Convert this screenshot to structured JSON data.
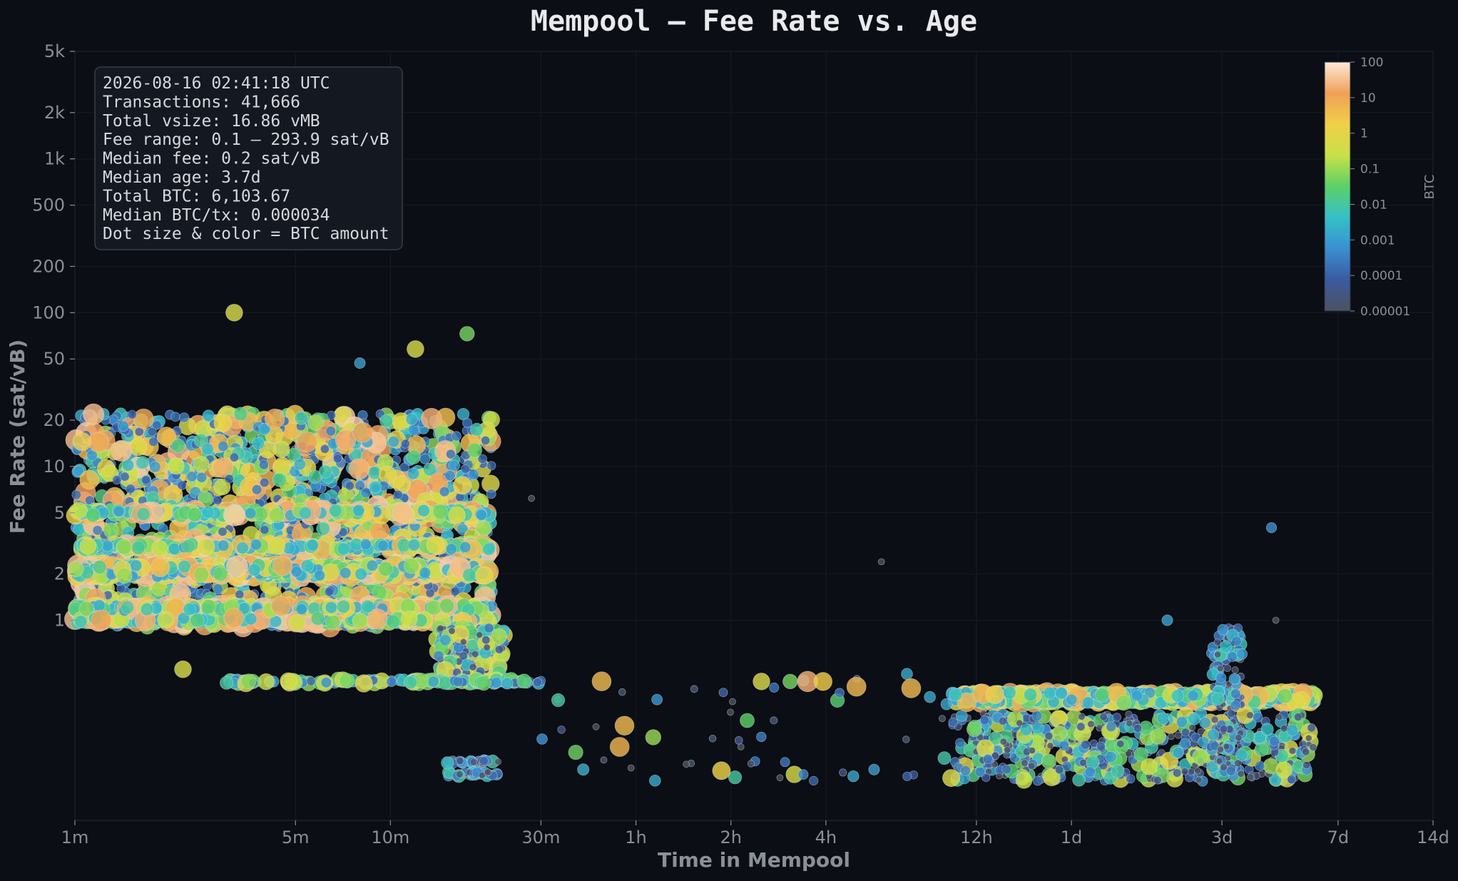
{
  "chart_data": {
    "type": "scatter",
    "title": "Mempool — Fee Rate vs. Age",
    "xlabel": "Time in Mempool",
    "ylabel": "Fee Rate (sat/vB)",
    "x_scale": "log",
    "y_scale": "log",
    "x_unit": "minutes",
    "xlim_minutes": [
      1,
      20160
    ],
    "ylim": [
      0.05,
      5000
    ],
    "x_ticks": [
      {
        "label": "1m",
        "minutes": 1
      },
      {
        "label": "5m",
        "minutes": 5
      },
      {
        "label": "10m",
        "minutes": 10
      },
      {
        "label": "30m",
        "minutes": 30
      },
      {
        "label": "1h",
        "minutes": 60
      },
      {
        "label": "2h",
        "minutes": 120
      },
      {
        "label": "4h",
        "minutes": 240
      },
      {
        "label": "12h",
        "minutes": 720
      },
      {
        "label": "1d",
        "minutes": 1440
      },
      {
        "label": "3d",
        "minutes": 4320
      },
      {
        "label": "7d",
        "minutes": 10080
      },
      {
        "label": "14d",
        "minutes": 20160
      }
    ],
    "y_ticks": [
      {
        "label": "1",
        "value": 1
      },
      {
        "label": "2",
        "value": 2
      },
      {
        "label": "5",
        "value": 5
      },
      {
        "label": "10",
        "value": 10
      },
      {
        "label": "20",
        "value": 20
      },
      {
        "label": "50",
        "value": 50
      },
      {
        "label": "100",
        "value": 100
      },
      {
        "label": "200",
        "value": 200
      },
      {
        "label": "500",
        "value": 500
      },
      {
        "label": "1k",
        "value": 1000
      },
      {
        "label": "2k",
        "value": 2000
      },
      {
        "label": "5k",
        "value": 5000
      }
    ],
    "grid": true,
    "colorbar": {
      "label": "BTC",
      "scale": "log",
      "range": [
        1e-05,
        100
      ],
      "ticks": [
        "100",
        "10",
        "1",
        "0.1",
        "0.01",
        "0.001",
        "0.0001",
        "0.00001"
      ],
      "colors": [
        "#4d5260",
        "#3a5aa0",
        "#3a8fd0",
        "#36c0c8",
        "#5cd068",
        "#c8e048",
        "#f0d048",
        "#f0a058",
        "#fde8d8"
      ],
      "position": "top-right"
    },
    "stats_box": {
      "lines": [
        "2026-08-16 02:41:18 UTC",
        "Transactions: 41,666",
        "Total vsize: 16.86 vMB",
        "Fee range: 0.1 – 293.9 sat/vB",
        "Median fee: 0.2 sat/vB",
        "Median age: 3.7d",
        "Total BTC: 6,103.67",
        "Median BTC/tx: 0.000034",
        "Dot size & color = BTC amount"
      ],
      "position": "top-left"
    },
    "clusters": [
      {
        "x_range_minutes": [
          1,
          21
        ],
        "fee_range": [
          0.9,
          22
        ],
        "btc_range": [
          0.0001,
          50
        ],
        "count": 1700
      },
      {
        "x_range_minutes": [
          1,
          21
        ],
        "fee_bands": [
          1,
          1.2,
          2,
          2.2,
          3,
          5
        ],
        "btc_range": [
          0.001,
          50
        ],
        "count": 1600
      },
      {
        "x_range_minutes": [
          14,
          23
        ],
        "fee_range": [
          0.45,
          0.9
        ],
        "btc_range": [
          1e-05,
          1
        ],
        "count": 180
      },
      {
        "x_range_minutes": [
          3,
          30
        ],
        "fee_values": [
          0.4
        ],
        "btc_range": [
          0.0001,
          1
        ],
        "count": 140
      },
      {
        "x_range_minutes": [
          15,
          22
        ],
        "fee_values": [
          0.12,
          0.1
        ],
        "btc_range": [
          1e-05,
          0.01
        ],
        "count": 80
      },
      {
        "x_range_minutes": [
          600,
          8500
        ],
        "fee_values": [
          0.33,
          0.3
        ],
        "btc_range": [
          0.001,
          10
        ],
        "count": 650
      },
      {
        "x_range_minutes": [
          600,
          8500
        ],
        "fee_range": [
          0.09,
          0.25
        ],
        "btc_range": [
          1e-05,
          1
        ],
        "count": 600
      },
      {
        "x_range_minutes": [
          4000,
          5000
        ],
        "fee_range": [
          0.1,
          0.9
        ],
        "btc_range": [
          1e-05,
          0.01
        ],
        "count": 120
      },
      {
        "x_range_minutes": [
          30,
          600
        ],
        "fee_range": [
          0.09,
          0.45
        ],
        "btc_range": [
          1e-05,
          10
        ],
        "count": 55
      }
    ],
    "points": [
      {
        "x_minutes": 3.2,
        "y": 100,
        "btc": 0.5
      },
      {
        "x_minutes": 17.5,
        "y": 73,
        "btc": 0.05
      },
      {
        "x_minutes": 12,
        "y": 58,
        "btc": 0.5
      },
      {
        "x_minutes": 8,
        "y": 47,
        "btc": 0.001
      },
      {
        "x_minutes": 13.5,
        "y": 20.5,
        "btc": 20
      },
      {
        "x_minutes": 4.3,
        "y": 20.4,
        "btc": 8
      },
      {
        "x_minutes": 28,
        "y": 6.2,
        "btc": 1e-05
      },
      {
        "x_minutes": 6200,
        "y": 4.0,
        "btc": 0.0005
      },
      {
        "x_minutes": 360,
        "y": 2.4,
        "btc": 1e-05
      },
      {
        "x_minutes": 2900,
        "y": 1.0,
        "btc": 0.001
      },
      {
        "x_minutes": 6400,
        "y": 1.0,
        "btc": 1e-05
      },
      {
        "x_minutes": 2.2,
        "y": 0.48,
        "btc": 0.5
      },
      {
        "x_minutes": 150,
        "y": 0.4,
        "btc": 0.5
      },
      {
        "x_minutes": 185,
        "y": 0.4,
        "btc": 0.05
      },
      {
        "x_minutes": 210,
        "y": 0.4,
        "btc": 20
      },
      {
        "x_minutes": 235,
        "y": 0.4,
        "btc": 2
      },
      {
        "x_minutes": 300,
        "y": 0.37,
        "btc": 5
      }
    ]
  }
}
